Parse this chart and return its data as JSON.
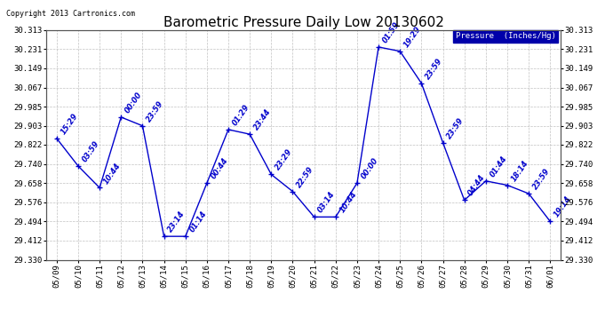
{
  "title": "Barometric Pressure Daily Low 20130602",
  "copyright": "Copyright 2013 Cartronics.com",
  "legend_label": "Pressure  (Inches/Hg)",
  "line_color": "#0000cc",
  "background_color": "#ffffff",
  "plot_bg_color": "#ffffff",
  "grid_color": "#bbbbbb",
  "x_labels": [
    "05/09",
    "05/10",
    "05/11",
    "05/12",
    "05/13",
    "05/14",
    "05/15",
    "05/16",
    "05/17",
    "05/18",
    "05/19",
    "05/20",
    "05/21",
    "05/22",
    "05/23",
    "05/24",
    "05/25",
    "05/26",
    "05/27",
    "05/28",
    "05/29",
    "05/30",
    "05/31",
    "06/01"
  ],
  "y_values": [
    29.849,
    29.731,
    29.638,
    29.94,
    29.903,
    29.43,
    29.43,
    29.658,
    29.887,
    29.867,
    29.695,
    29.622,
    29.513,
    29.513,
    29.658,
    30.24,
    30.222,
    30.085,
    29.831,
    29.585,
    29.667,
    29.649,
    29.613,
    29.494
  ],
  "point_labels": [
    "15:29",
    "03:59",
    "10:44",
    "00:00",
    "23:59",
    "23:14",
    "01:14",
    "00:44",
    "01:29",
    "23:44",
    "23:29",
    "22:59",
    "03:14",
    "10:44",
    "00:00",
    "01:59",
    "19:29",
    "23:59",
    "23:59",
    "04:44",
    "01:44",
    "18:14",
    "23:59",
    "19:14"
  ],
  "ylim_min": 29.33,
  "ylim_max": 30.313,
  "yticks": [
    29.33,
    29.412,
    29.494,
    29.576,
    29.658,
    29.74,
    29.822,
    29.903,
    29.985,
    30.067,
    30.149,
    30.231,
    30.313
  ],
  "title_fontsize": 11,
  "label_fontsize": 6,
  "tick_fontsize": 6.5,
  "point_size": 4
}
